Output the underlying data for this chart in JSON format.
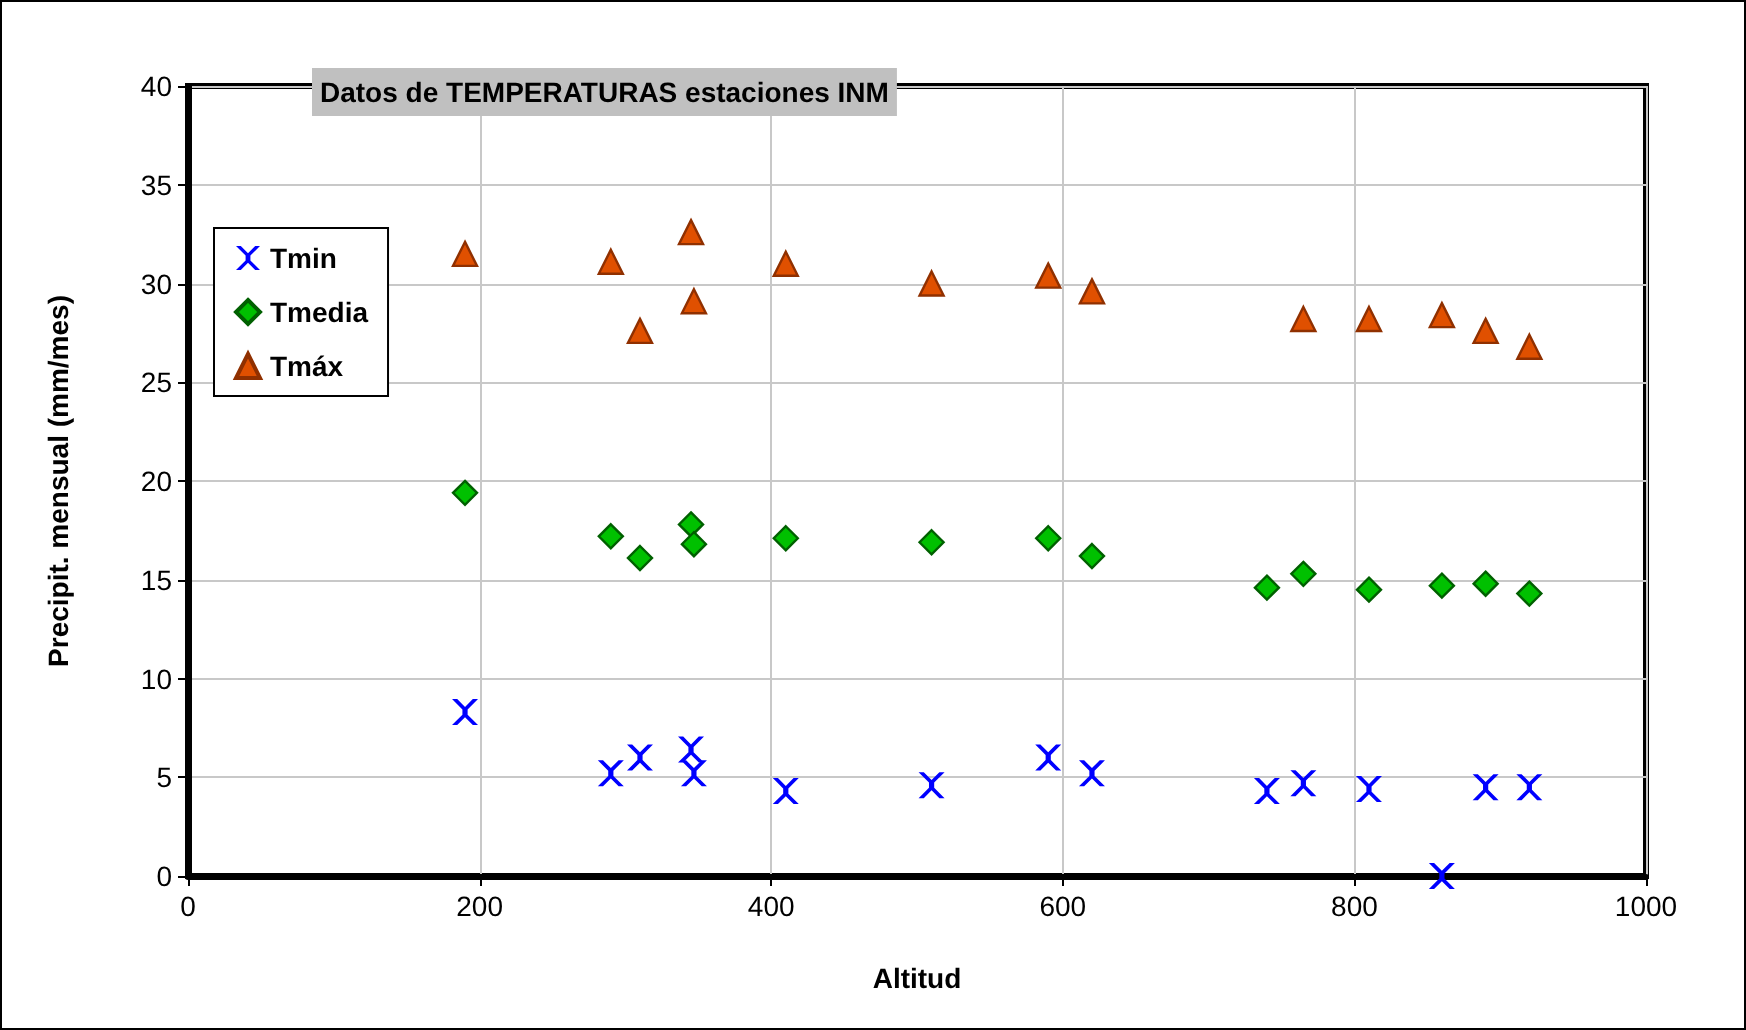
{
  "chart_data": {
    "type": "scatter",
    "title": "Datos de TEMPERATURAS estaciones INM",
    "xlabel": "Altitud",
    "ylabel": "Precipit. mensual (mm/mes)",
    "x": [
      190,
      290,
      310,
      345,
      347,
      410,
      510,
      590,
      620,
      740,
      765,
      810,
      860,
      890,
      920
    ],
    "series": [
      {
        "name": "Tmin",
        "color": "#0000ff",
        "marker": "cross",
        "values": [
          8.3,
          5.2,
          6.0,
          6.4,
          5.2,
          4.3,
          4.6,
          6.0,
          5.2,
          4.3,
          4.7,
          4.4,
          0,
          4.5,
          4.5
        ]
      },
      {
        "name": "Tmedia",
        "color": "#00c000",
        "marker": "diamond",
        "values": [
          19.4,
          17.2,
          16.1,
          17.8,
          16.8,
          17.1,
          16.9,
          17.1,
          16.2,
          14.6,
          15.3,
          14.5,
          14.7,
          14.8,
          14.3
        ]
      },
      {
        "name": "Tmáx",
        "color": "#e05000",
        "marker": "triangle",
        "values": [
          31.5,
          31.1,
          27.6,
          32.6,
          29.1,
          31.0,
          30.0,
          30.4,
          29.6,
          null,
          28.2,
          28.2,
          28.4,
          27.6,
          26.8
        ]
      }
    ],
    "xlim": [
      0,
      1000
    ],
    "xticks": [
      0,
      200,
      400,
      600,
      800,
      1000
    ],
    "ylim": [
      0,
      40
    ],
    "yticks": [
      0,
      5,
      10,
      15,
      20,
      25,
      30,
      35,
      40
    ],
    "grid": true,
    "legend": "top left"
  }
}
